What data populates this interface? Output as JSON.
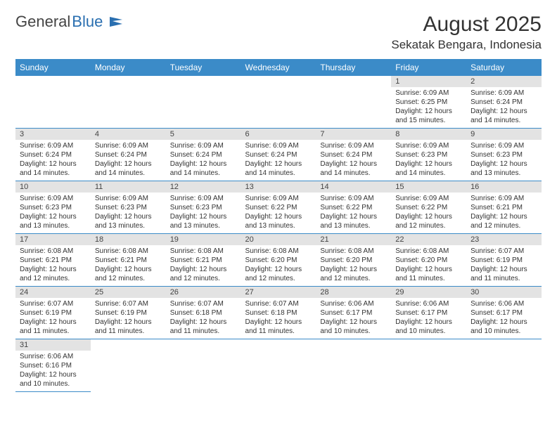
{
  "logo": {
    "text1": "General",
    "text2": "Blue"
  },
  "title": "August 2025",
  "location": "Sekatak Bengara, Indonesia",
  "colors": {
    "header_bg": "#3b8bc8",
    "header_text": "#ffffff",
    "daynum_bg": "#e3e3e3",
    "border": "#3b8bc8",
    "logo_blue": "#2a6fb0"
  },
  "columns": [
    "Sunday",
    "Monday",
    "Tuesday",
    "Wednesday",
    "Thursday",
    "Friday",
    "Saturday"
  ],
  "weeks": [
    [
      {},
      {},
      {},
      {},
      {},
      {
        "day": "1",
        "sunrise": "Sunrise: 6:09 AM",
        "sunset": "Sunset: 6:25 PM",
        "daylight": "Daylight: 12 hours and 15 minutes."
      },
      {
        "day": "2",
        "sunrise": "Sunrise: 6:09 AM",
        "sunset": "Sunset: 6:24 PM",
        "daylight": "Daylight: 12 hours and 14 minutes."
      }
    ],
    [
      {
        "day": "3",
        "sunrise": "Sunrise: 6:09 AM",
        "sunset": "Sunset: 6:24 PM",
        "daylight": "Daylight: 12 hours and 14 minutes."
      },
      {
        "day": "4",
        "sunrise": "Sunrise: 6:09 AM",
        "sunset": "Sunset: 6:24 PM",
        "daylight": "Daylight: 12 hours and 14 minutes."
      },
      {
        "day": "5",
        "sunrise": "Sunrise: 6:09 AM",
        "sunset": "Sunset: 6:24 PM",
        "daylight": "Daylight: 12 hours and 14 minutes."
      },
      {
        "day": "6",
        "sunrise": "Sunrise: 6:09 AM",
        "sunset": "Sunset: 6:24 PM",
        "daylight": "Daylight: 12 hours and 14 minutes."
      },
      {
        "day": "7",
        "sunrise": "Sunrise: 6:09 AM",
        "sunset": "Sunset: 6:24 PM",
        "daylight": "Daylight: 12 hours and 14 minutes."
      },
      {
        "day": "8",
        "sunrise": "Sunrise: 6:09 AM",
        "sunset": "Sunset: 6:23 PM",
        "daylight": "Daylight: 12 hours and 14 minutes."
      },
      {
        "day": "9",
        "sunrise": "Sunrise: 6:09 AM",
        "sunset": "Sunset: 6:23 PM",
        "daylight": "Daylight: 12 hours and 13 minutes."
      }
    ],
    [
      {
        "day": "10",
        "sunrise": "Sunrise: 6:09 AM",
        "sunset": "Sunset: 6:23 PM",
        "daylight": "Daylight: 12 hours and 13 minutes."
      },
      {
        "day": "11",
        "sunrise": "Sunrise: 6:09 AM",
        "sunset": "Sunset: 6:23 PM",
        "daylight": "Daylight: 12 hours and 13 minutes."
      },
      {
        "day": "12",
        "sunrise": "Sunrise: 6:09 AM",
        "sunset": "Sunset: 6:23 PM",
        "daylight": "Daylight: 12 hours and 13 minutes."
      },
      {
        "day": "13",
        "sunrise": "Sunrise: 6:09 AM",
        "sunset": "Sunset: 6:22 PM",
        "daylight": "Daylight: 12 hours and 13 minutes."
      },
      {
        "day": "14",
        "sunrise": "Sunrise: 6:09 AM",
        "sunset": "Sunset: 6:22 PM",
        "daylight": "Daylight: 12 hours and 13 minutes."
      },
      {
        "day": "15",
        "sunrise": "Sunrise: 6:09 AM",
        "sunset": "Sunset: 6:22 PM",
        "daylight": "Daylight: 12 hours and 12 minutes."
      },
      {
        "day": "16",
        "sunrise": "Sunrise: 6:09 AM",
        "sunset": "Sunset: 6:21 PM",
        "daylight": "Daylight: 12 hours and 12 minutes."
      }
    ],
    [
      {
        "day": "17",
        "sunrise": "Sunrise: 6:08 AM",
        "sunset": "Sunset: 6:21 PM",
        "daylight": "Daylight: 12 hours and 12 minutes."
      },
      {
        "day": "18",
        "sunrise": "Sunrise: 6:08 AM",
        "sunset": "Sunset: 6:21 PM",
        "daylight": "Daylight: 12 hours and 12 minutes."
      },
      {
        "day": "19",
        "sunrise": "Sunrise: 6:08 AM",
        "sunset": "Sunset: 6:21 PM",
        "daylight": "Daylight: 12 hours and 12 minutes."
      },
      {
        "day": "20",
        "sunrise": "Sunrise: 6:08 AM",
        "sunset": "Sunset: 6:20 PM",
        "daylight": "Daylight: 12 hours and 12 minutes."
      },
      {
        "day": "21",
        "sunrise": "Sunrise: 6:08 AM",
        "sunset": "Sunset: 6:20 PM",
        "daylight": "Daylight: 12 hours and 12 minutes."
      },
      {
        "day": "22",
        "sunrise": "Sunrise: 6:08 AM",
        "sunset": "Sunset: 6:20 PM",
        "daylight": "Daylight: 12 hours and 11 minutes."
      },
      {
        "day": "23",
        "sunrise": "Sunrise: 6:07 AM",
        "sunset": "Sunset: 6:19 PM",
        "daylight": "Daylight: 12 hours and 11 minutes."
      }
    ],
    [
      {
        "day": "24",
        "sunrise": "Sunrise: 6:07 AM",
        "sunset": "Sunset: 6:19 PM",
        "daylight": "Daylight: 12 hours and 11 minutes."
      },
      {
        "day": "25",
        "sunrise": "Sunrise: 6:07 AM",
        "sunset": "Sunset: 6:19 PM",
        "daylight": "Daylight: 12 hours and 11 minutes."
      },
      {
        "day": "26",
        "sunrise": "Sunrise: 6:07 AM",
        "sunset": "Sunset: 6:18 PM",
        "daylight": "Daylight: 12 hours and 11 minutes."
      },
      {
        "day": "27",
        "sunrise": "Sunrise: 6:07 AM",
        "sunset": "Sunset: 6:18 PM",
        "daylight": "Daylight: 12 hours and 11 minutes."
      },
      {
        "day": "28",
        "sunrise": "Sunrise: 6:06 AM",
        "sunset": "Sunset: 6:17 PM",
        "daylight": "Daylight: 12 hours and 10 minutes."
      },
      {
        "day": "29",
        "sunrise": "Sunrise: 6:06 AM",
        "sunset": "Sunset: 6:17 PM",
        "daylight": "Daylight: 12 hours and 10 minutes."
      },
      {
        "day": "30",
        "sunrise": "Sunrise: 6:06 AM",
        "sunset": "Sunset: 6:17 PM",
        "daylight": "Daylight: 12 hours and 10 minutes."
      }
    ],
    [
      {
        "day": "31",
        "sunrise": "Sunrise: 6:06 AM",
        "sunset": "Sunset: 6:16 PM",
        "daylight": "Daylight: 12 hours and 10 minutes."
      },
      {},
      {},
      {},
      {},
      {},
      {}
    ]
  ]
}
